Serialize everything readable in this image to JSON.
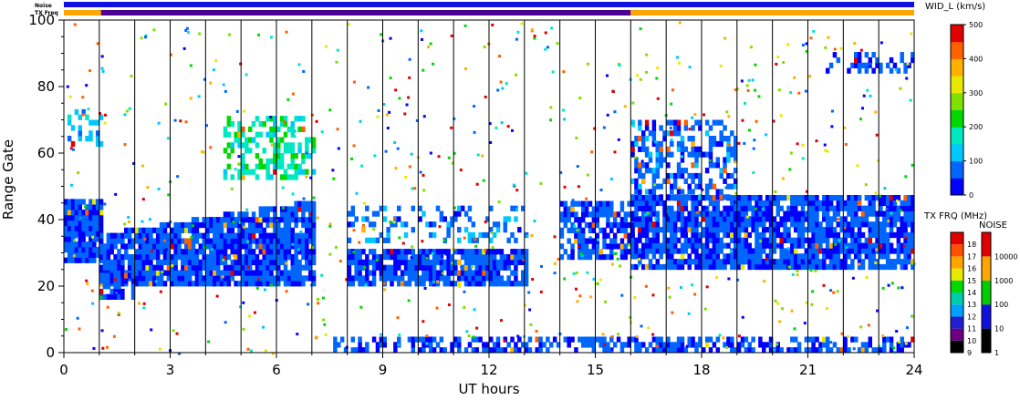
{
  "chart_data": {
    "type": "heatmap",
    "title": "",
    "xlabel": "UT hours",
    "ylabel": "Range Gate",
    "xlim": [
      0,
      24
    ],
    "ylim": [
      0,
      100
    ],
    "x_ticks": [
      "0",
      "3",
      "6",
      "9",
      "12",
      "15",
      "18",
      "21",
      "24"
    ],
    "x_tick_values": [
      0,
      3,
      6,
      9,
      12,
      15,
      18,
      21,
      24
    ],
    "y_ticks": [
      "0",
      "20",
      "40",
      "60",
      "80",
      "100"
    ],
    "y_tick_values": [
      0,
      20,
      40,
      60,
      80,
      100
    ],
    "hour_gridlines": [
      1,
      2,
      3,
      4,
      5,
      6,
      7,
      8,
      9,
      10,
      11,
      12,
      13,
      14,
      15,
      16,
      17,
      18,
      19,
      20,
      21,
      22,
      23
    ],
    "top_bars": {
      "noise_label": "Noise",
      "txfreq_label": "TX Freq",
      "noise_color": "#1010e0",
      "txfreq_segments": [
        {
          "start": 0,
          "end": 1.05,
          "color": "#ffa500"
        },
        {
          "start": 1.05,
          "end": 16.0,
          "color": "#4b0090"
        },
        {
          "start": 16.0,
          "end": 24,
          "color": "#ffa500"
        }
      ]
    },
    "echo_regions": [
      {
        "t0": 0.0,
        "t1": 1.0,
        "g0": 27,
        "g1": 45,
        "v": 60,
        "density": 0.92
      },
      {
        "t0": 1.0,
        "t1": 7.0,
        "g0": 20,
        "g1": 35,
        "v": 60,
        "density": 0.9,
        "g1_end": 45
      },
      {
        "t0": 1.0,
        "t1": 2.0,
        "g0": 16,
        "g1": 24,
        "v": 60,
        "density": 0.8
      },
      {
        "t0": 4.5,
        "t1": 7.0,
        "g0": 52,
        "g1": 70,
        "v": 180,
        "density": 0.45
      },
      {
        "t0": 8.0,
        "t1": 13.0,
        "g0": 20,
        "g1": 31,
        "v": 60,
        "density": 0.85
      },
      {
        "t0": 8.0,
        "t1": 13.0,
        "g0": 33,
        "g1": 44,
        "v": 80,
        "density": 0.25
      },
      {
        "t0": 14.0,
        "t1": 16.0,
        "g0": 28,
        "g1": 45,
        "v": 60,
        "density": 0.7
      },
      {
        "t0": 16.0,
        "t1": 24.0,
        "g0": 25,
        "g1": 46,
        "v": 60,
        "density": 0.85
      },
      {
        "t0": 16.0,
        "t1": 19.0,
        "g0": 46,
        "g1": 70,
        "v": 70,
        "density": 0.45
      },
      {
        "t0": 7.5,
        "t1": 24.0,
        "g0": 0,
        "g1": 4,
        "v": 60,
        "density": 0.5
      },
      {
        "t0": 21.5,
        "t1": 24.0,
        "g0": 84,
        "g1": 90,
        "v": 60,
        "density": 0.4
      },
      {
        "t0": 0.0,
        "t1": 1.0,
        "g0": 62,
        "g1": 72,
        "v": 120,
        "density": 0.3
      }
    ],
    "colorbars": {
      "width": {
        "title": "WID_L (km/s)",
        "range": [
          0,
          500
        ],
        "ticks": [
          "0",
          "100",
          "200",
          "300",
          "400",
          "500"
        ],
        "tick_values": [
          0,
          100,
          200,
          300,
          400,
          500
        ],
        "colors": [
          "#0000ff",
          "#0066ff",
          "#00c8ff",
          "#00e8c0",
          "#00d800",
          "#80e000",
          "#e8e800",
          "#ffb000",
          "#ff6000",
          "#e00000"
        ]
      },
      "txfreq": {
        "title": "TX FRQ (MHz)",
        "labels": [
          "9",
          "10",
          "11",
          "12",
          "13",
          "14",
          "15",
          "16",
          "17",
          "18"
        ],
        "colors": [
          "#000000",
          "#6a0080",
          "#2020d0",
          "#00a0ff",
          "#00ccaa",
          "#00d800",
          "#e8e800",
          "#ffa500",
          "#ff5000",
          "#e00000"
        ]
      },
      "noise": {
        "title": "NOISE",
        "labels": [
          "1",
          "10",
          "100",
          "1000",
          "10000"
        ],
        "colors": [
          "#000000",
          "#1010e0",
          "#00cc00",
          "#ffa500",
          "#e00000"
        ]
      }
    }
  }
}
